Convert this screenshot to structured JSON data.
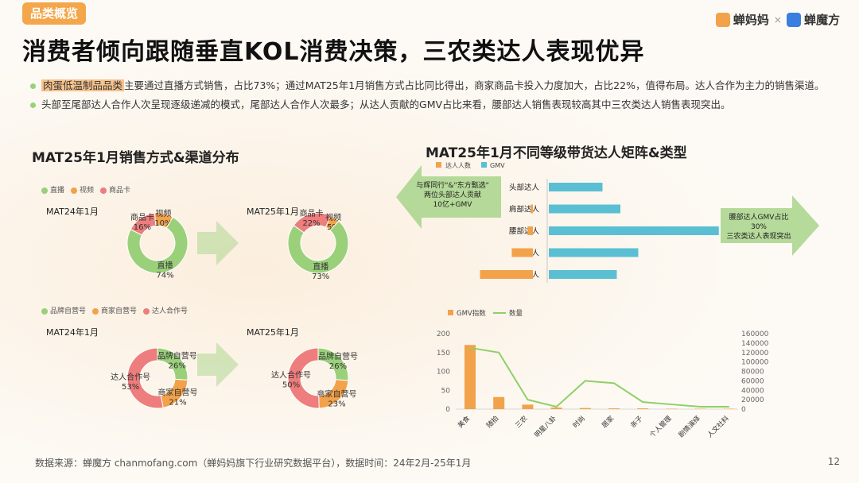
{
  "header": {
    "tag": "品类概览",
    "brand1": "蝉妈妈",
    "brand_sep": "×",
    "brand2": "蝉魔方"
  },
  "title": "消费者倾向跟随垂直KOL消费决策，三农类达人表现优异",
  "bullets": [
    {
      "highlight": "肉蛋低温制品品类",
      "text": "主要通过直播方式销售，占比73%；通过MAT25年1月销售方式占比同比得出，商家商品卡投入力度加大，占比22%，值得布局。达人合作为主力的销售渠道。"
    },
    {
      "highlight": "",
      "text": "头部至尾部达人合作人次呈现逐级递减的模式，尾部达人合作人次最多；从达人贡献的GMV占比来看，腰部达人销售表现较高其中三农类达人销售表现突出。"
    }
  ],
  "left_title": "MAT25年1月销售方式&渠道分布",
  "right_title": "MAT25年1月不同等级带货达人矩阵&类型",
  "colors": {
    "green": "#9bd07a",
    "orange": "#f2a24a",
    "red": "#ee7d7d",
    "blue": "#5bbfd3",
    "line": "#8fd066"
  },
  "chart_data": [
    {
      "type": "pie",
      "name": "MAT24年1月",
      "legend": [
        "直播",
        "视频",
        "商品卡"
      ],
      "slices": [
        {
          "label": "直播",
          "value": 74
        },
        {
          "label": "视频",
          "value": 10
        },
        {
          "label": "商品卡",
          "value": 16
        }
      ]
    },
    {
      "type": "pie",
      "name": "MAT25年1月",
      "legend": [
        "直播",
        "视频",
        "商品卡"
      ],
      "slices": [
        {
          "label": "直播",
          "value": 73
        },
        {
          "label": "视频",
          "value": 5
        },
        {
          "label": "商品卡",
          "value": 22
        }
      ]
    },
    {
      "type": "pie",
      "name": "MAT24年1月",
      "legend": [
        "品牌自营号",
        "商家自营号",
        "达人合作号"
      ],
      "slices": [
        {
          "label": "品牌自营号",
          "value": 26
        },
        {
          "label": "商家自营号",
          "value": 21
        },
        {
          "label": "达人合作号",
          "value": 53
        }
      ]
    },
    {
      "type": "pie",
      "name": "MAT25年1月",
      "legend": [
        "品牌自营号",
        "商家自营号",
        "达人合作号"
      ],
      "slices": [
        {
          "label": "品牌自营号",
          "value": 26
        },
        {
          "label": "商家自营号",
          "value": 23
        },
        {
          "label": "达人合作号",
          "value": 50
        }
      ]
    },
    {
      "type": "bar",
      "orientation": "butterfly",
      "categories": [
        "头部达人",
        "肩部达人",
        "腰部达人",
        "小达人",
        "尾部达人"
      ],
      "series": [
        {
          "name": "达人人数",
          "values": [
            0,
            3,
            7,
            28,
            70
          ]
        },
        {
          "name": "GMV",
          "values": [
            30,
            40,
            95,
            50,
            38
          ]
        }
      ]
    },
    {
      "type": "bar",
      "combo": "line",
      "categories": [
        "美食",
        "随拍",
        "三农",
        "明星八卦",
        "时尚",
        "居家",
        "亲子",
        "个人管理",
        "剧情演绎",
        "人文社科"
      ],
      "series": [
        {
          "name": "GMV指数",
          "axis": "left",
          "values": [
            170,
            32,
            12,
            4,
            3,
            2,
            2,
            1,
            1,
            1
          ]
        },
        {
          "name": "数量",
          "axis": "right",
          "values": [
            130000,
            120000,
            20000,
            5000,
            60000,
            55000,
            15000,
            10000,
            5000,
            5000
          ]
        }
      ],
      "ylim_left": [
        0,
        200
      ],
      "yticks_left": [
        "0",
        "50",
        "100",
        "150",
        "200"
      ],
      "ylim_right": [
        0,
        160000
      ],
      "yticks_right": [
        "0",
        "20000",
        "40000",
        "60000",
        "80000",
        "100000",
        "120000",
        "140000",
        "160000"
      ]
    }
  ],
  "callouts": {
    "left": "与辉同行\"&\"东方甄选\"\n两位头部达人贡献\n10亿+GMV",
    "right": "腰部达人GMV占比30%\n三农类达人表现突出"
  },
  "footer": "数据来源：蝉魔方 chanmofang.com（蝉妈妈旗下行业研究数据平台），数据时间：24年2月-25年1月",
  "page": "12"
}
